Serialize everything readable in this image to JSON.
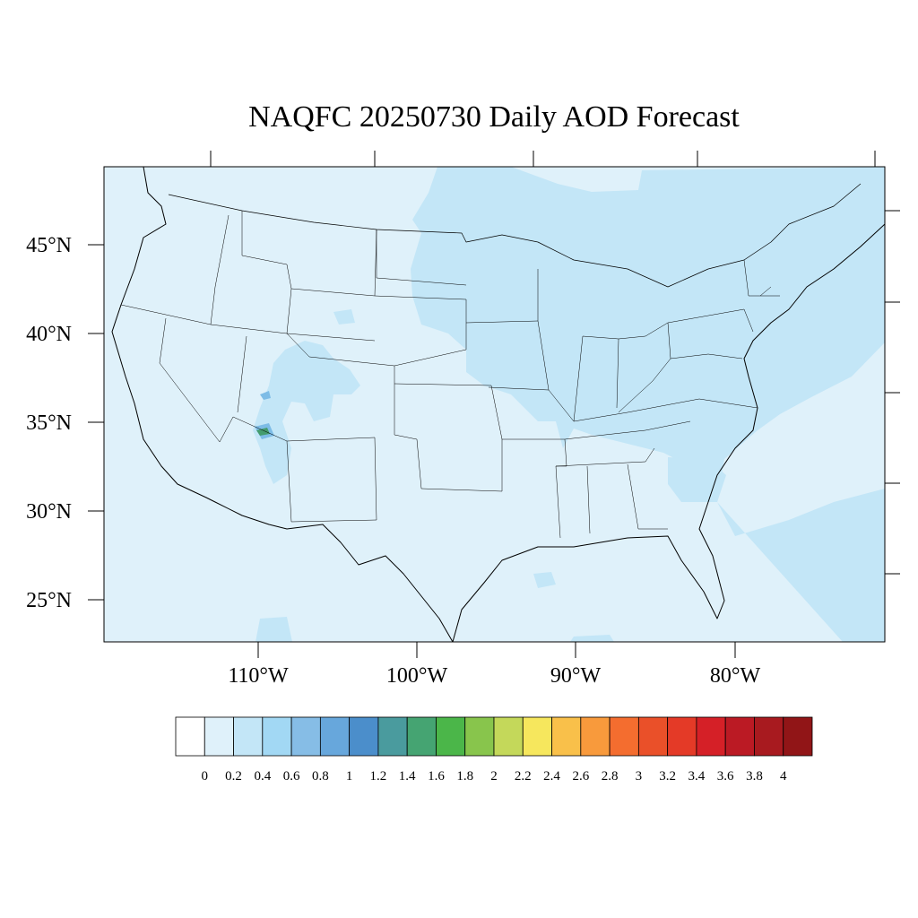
{
  "title": "NAQFC 20250730 Daily AOD Forecast",
  "map": {
    "projection": "lambert-conformal",
    "lat_ticks": [
      "45°N",
      "40°N",
      "35°N",
      "30°N",
      "25°N"
    ],
    "lon_ticks": [
      "110°W",
      "100°W",
      "90°W",
      "80°W"
    ],
    "background_level_color": "#dff1fa",
    "elevated_level_color": "#c3e6f7",
    "hotspot_colors": [
      "#7dbce6",
      "#449c6e"
    ],
    "boundary_color": "#000000"
  },
  "colorbar": {
    "labels": [
      "0",
      "0.2",
      "0.4",
      "0.6",
      "0.8",
      "1",
      "1.2",
      "1.4",
      "1.6",
      "1.8",
      "2",
      "2.2",
      "2.4",
      "2.6",
      "2.8",
      "3",
      "3.2",
      "3.4",
      "3.6",
      "3.8",
      "4"
    ],
    "colors": [
      "#ffffff",
      "#dff1fa",
      "#c3e6f7",
      "#a2d8f4",
      "#86bde6",
      "#67a7dc",
      "#4b8ecb",
      "#4a9b9e",
      "#45a472",
      "#4bb649",
      "#88c54c",
      "#c4d85a",
      "#f6e75d",
      "#f9c04a",
      "#f89a3c",
      "#f46d2f",
      "#ea5029",
      "#e43a27",
      "#d52027",
      "#bb1a24",
      "#a81a1f",
      "#911517"
    ]
  }
}
